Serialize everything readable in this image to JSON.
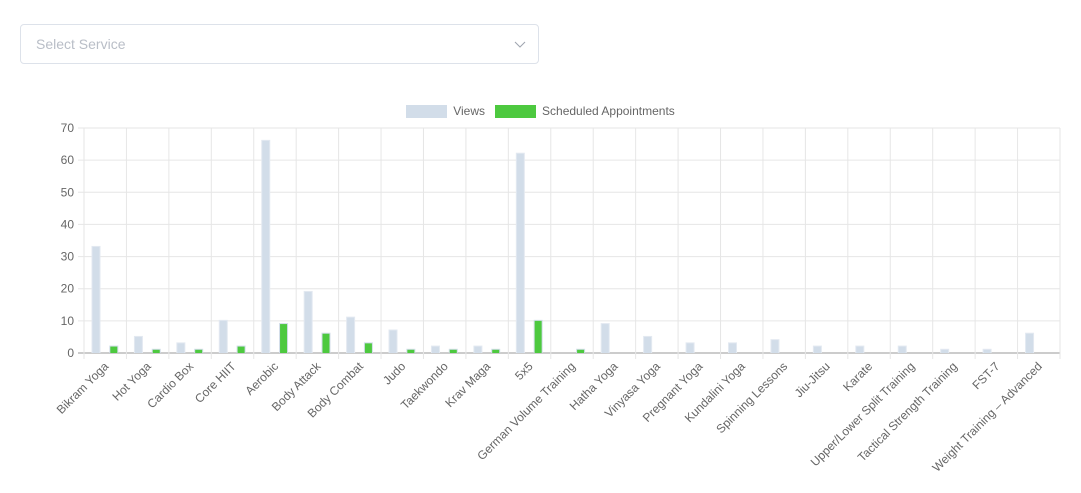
{
  "service_select": {
    "placeholder": "Select Service",
    "icon": "chevron-down-icon"
  },
  "legend": [
    {
      "label": "Views",
      "color": "#d2dde9"
    },
    {
      "label": "Scheduled Appointments",
      "color": "#4dc93f"
    }
  ],
  "chart_data": {
    "type": "bar",
    "title": "",
    "xlabel": "",
    "ylabel": "",
    "ylim": [
      0,
      70
    ],
    "yticks": [
      0,
      10,
      20,
      30,
      40,
      50,
      60,
      70
    ],
    "grid": true,
    "legend_position": "top",
    "categories": [
      "Bikram Yoga",
      "Hot Yoga",
      "Cardio Box",
      "Core HIIT",
      "Aerobic",
      "Body Attack",
      "Body Combat",
      "Judo",
      "Taekwondo",
      "Krav Maga",
      "5x5",
      "German Volume Training",
      "Hatha Yoga",
      "Vinyasa Yoga",
      "Pregnant Yoga",
      "Kundalini Yoga",
      "Spinning Lessons",
      "Jiu-Jitsu",
      "Karate",
      "Upper/Lower Split Training",
      "Tactical Strength Training",
      "FST-7",
      "Weight Training – Advanced"
    ],
    "series": [
      {
        "name": "Views",
        "color": "#d2dde9",
        "values": [
          33,
          5,
          3,
          10,
          66,
          19,
          11,
          7,
          2,
          2,
          62,
          0,
          9,
          5,
          3,
          3,
          4,
          2,
          2,
          2,
          1,
          1,
          6
        ]
      },
      {
        "name": "Scheduled Appointments",
        "color": "#4dc93f",
        "values": [
          2,
          1,
          1,
          2,
          9,
          6,
          3,
          1,
          1,
          1,
          10,
          1,
          0,
          0,
          0,
          0,
          0,
          0,
          0,
          0,
          0,
          0,
          0
        ]
      }
    ]
  }
}
